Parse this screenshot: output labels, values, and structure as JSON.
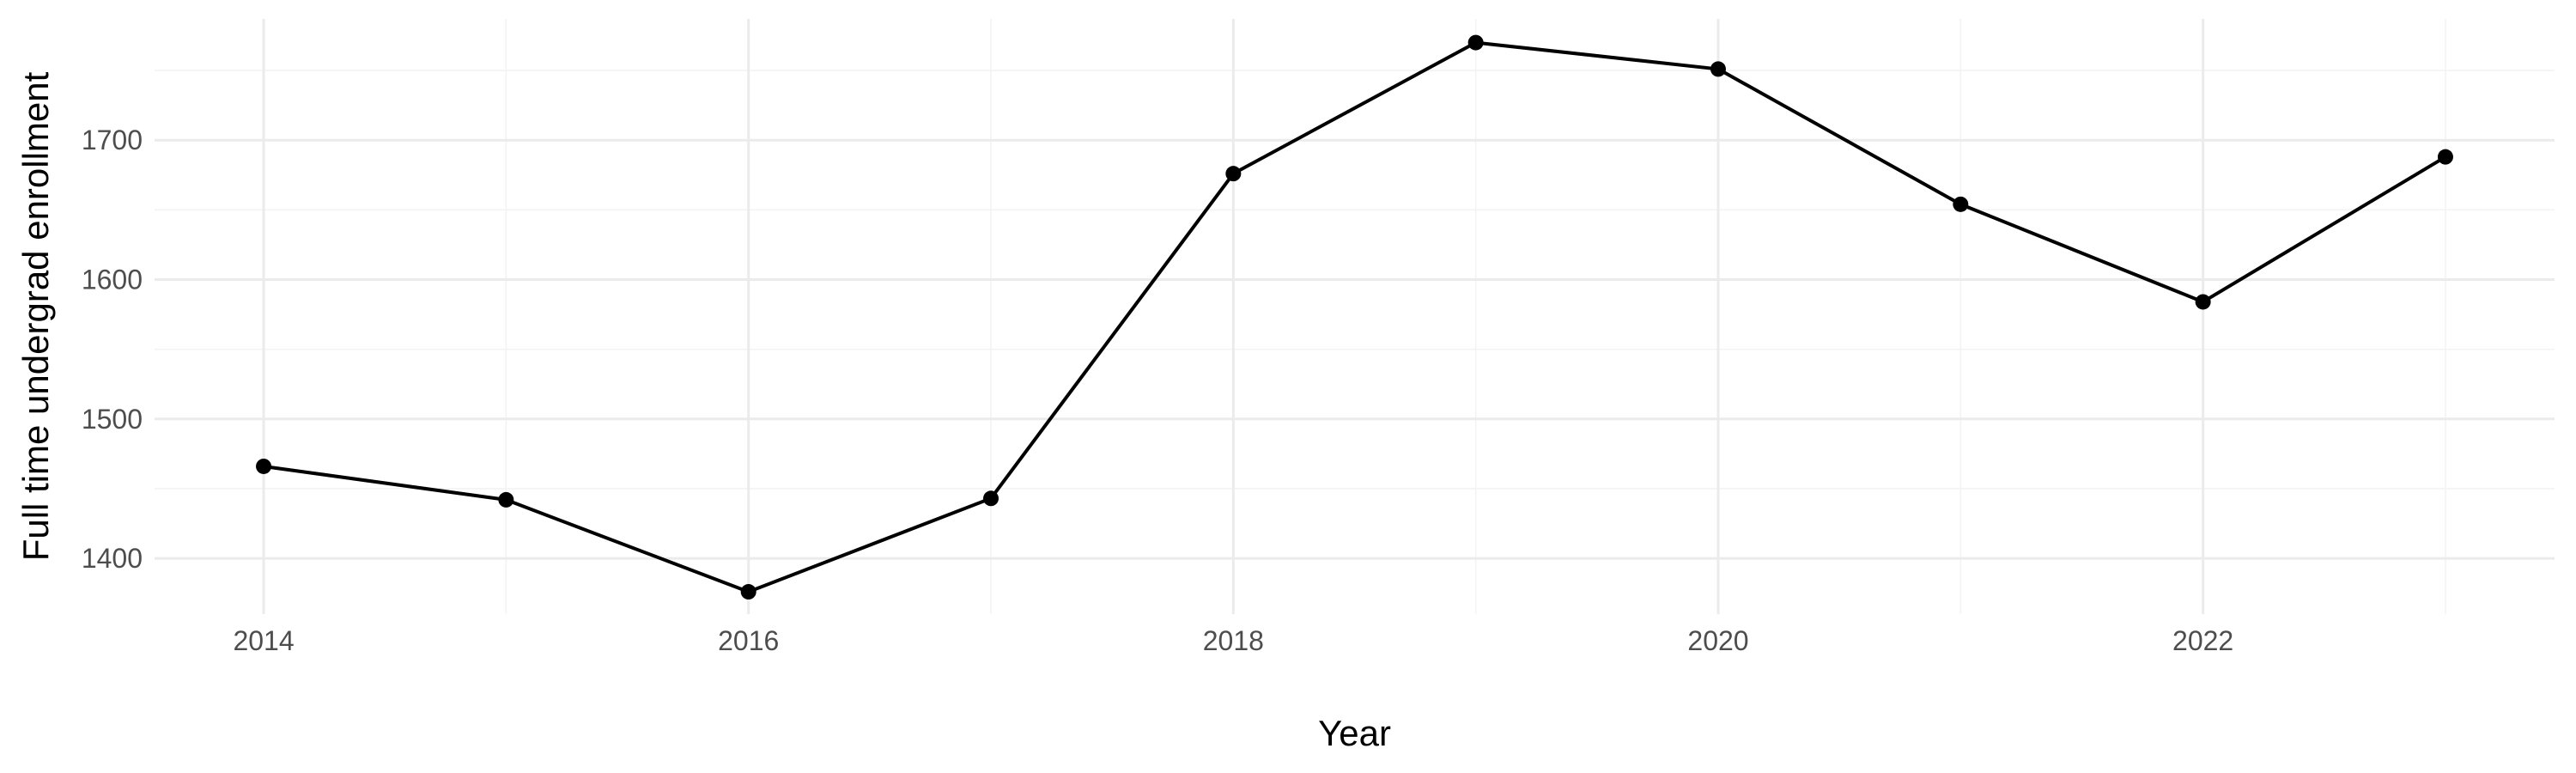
{
  "chart_data": {
    "type": "line",
    "title": "",
    "xlabel": "Year",
    "ylabel": "Full time undergrad enrollment",
    "x": [
      2014,
      2015,
      2016,
      2017,
      2018,
      2019,
      2020,
      2021,
      2022,
      2023
    ],
    "series": [
      {
        "values": [
          1466,
          1442,
          1376,
          1443,
          1676,
          1770,
          1751,
          1654,
          1584,
          1688
        ],
        "color": "#000000"
      }
    ],
    "xlim": [
      2013.55,
      2023.45
    ],
    "ylim": [
      1360,
      1787
    ],
    "x_ticks": [
      2014,
      2016,
      2018,
      2020,
      2022
    ],
    "y_ticks": [
      1400,
      1500,
      1600,
      1700
    ],
    "grid": true,
    "legend": "none"
  }
}
